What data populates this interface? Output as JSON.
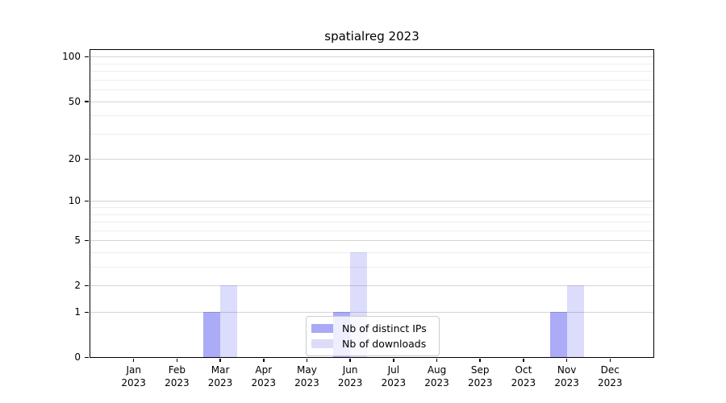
{
  "chart_data": {
    "type": "bar",
    "title": "spatialreg 2023",
    "categories": [
      "Jan 2023",
      "Feb 2023",
      "Mar 2023",
      "Apr 2023",
      "May 2023",
      "Jun 2023",
      "Jul 2023",
      "Aug 2023",
      "Sep 2023",
      "Oct 2023",
      "Nov 2023",
      "Dec 2023"
    ],
    "series": [
      {
        "name": "Nb of distinct IPs",
        "color": "rgba(13,13,232,0.35)",
        "swatch_color": "#a9a9f7",
        "values": [
          0,
          0,
          1,
          0,
          0,
          1,
          0,
          0,
          0,
          0,
          1,
          0
        ]
      },
      {
        "name": "Nb of downloads",
        "color": "rgba(13,13,232,0.145)",
        "swatch_color": "#dcdcf8",
        "values": [
          0,
          0,
          2,
          0,
          0,
          4,
          0,
          0,
          0,
          0,
          2,
          0
        ]
      }
    ],
    "xlabel": "",
    "ylabel": "",
    "yscale": "log1p",
    "ylim": [
      0,
      111
    ],
    "yticks": [
      0,
      1,
      2,
      5,
      10,
      20,
      50,
      100
    ],
    "yticks_minor": [
      3,
      4,
      6,
      7,
      8,
      9,
      30,
      40,
      60,
      70,
      80,
      90
    ],
    "grid": "on",
    "legend_position": "lower-center-inside"
  },
  "colors": {
    "background": "#ffffff",
    "axis": "#000000",
    "grid_major": "#d4d4d4",
    "grid_minor": "#eeeeee",
    "legend_border": "#cccccc",
    "legend_background": "rgba(255,255,255,0.8)",
    "text": "#000000"
  }
}
